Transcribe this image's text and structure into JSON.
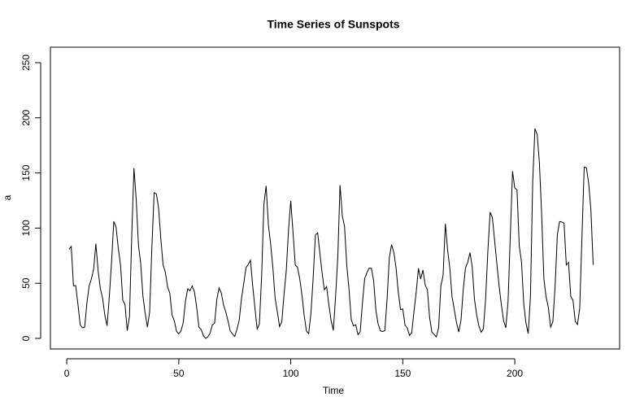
{
  "chart_data": {
    "type": "line",
    "title": "Time Series of Sunspots",
    "x_label": "Time",
    "y_label": "a",
    "x": [
      1,
      2,
      3,
      4,
      5,
      6,
      7,
      8,
      9,
      10,
      11,
      12,
      13,
      14,
      15,
      16,
      17,
      18,
      19,
      20,
      21,
      22,
      23,
      24,
      25,
      26,
      27,
      28,
      29,
      30,
      31,
      32,
      33,
      34,
      35,
      36,
      37,
      38,
      39,
      40,
      41,
      42,
      43,
      44,
      45,
      46,
      47,
      48,
      49,
      50,
      51,
      52,
      53,
      54,
      55,
      56,
      57,
      58,
      59,
      60,
      61,
      62,
      63,
      64,
      65,
      66,
      67,
      68,
      69,
      70,
      71,
      72,
      73,
      74,
      75,
      76,
      77,
      78,
      79,
      80,
      81,
      82,
      83,
      84,
      85,
      86,
      87,
      88,
      89,
      90,
      91,
      92,
      93,
      94,
      95,
      96,
      97,
      98,
      99,
      100,
      101,
      102,
      103,
      104,
      105,
      106,
      107,
      108,
      109,
      110,
      111,
      112,
      113,
      114,
      115,
      116,
      117,
      118,
      119,
      120,
      121,
      122,
      123,
      124,
      125,
      126,
      127,
      128,
      129,
      130,
      131,
      132,
      133,
      134,
      135,
      136,
      137,
      138,
      139,
      140,
      141,
      142,
      143,
      144,
      145,
      146,
      147,
      148,
      149,
      150,
      151,
      152,
      153,
      154,
      155,
      156,
      157,
      158,
      159,
      160,
      161,
      162,
      163,
      164,
      165,
      166,
      167,
      168,
      169,
      170,
      171,
      172,
      173,
      174,
      175,
      176,
      177,
      178,
      179,
      180,
      181,
      182,
      183,
      184,
      185,
      186,
      187,
      188,
      189,
      190,
      191,
      192,
      193,
      194,
      195,
      196,
      197,
      198,
      199,
      200,
      201,
      202,
      203,
      204,
      205,
      206,
      207,
      208,
      209,
      210,
      211,
      212,
      213,
      214,
      215,
      216,
      217,
      218,
      219,
      220,
      221,
      222,
      223,
      224,
      225,
      226,
      227,
      228,
      229,
      230,
      231,
      232,
      233,
      234,
      235
    ],
    "series": [
      {
        "color": "#000000",
        "values": [
          80.9,
          83.4,
          47.7,
          47.8,
          30.7,
          12.2,
          9.6,
          10.2,
          32.4,
          47.6,
          54.0,
          62.9,
          85.9,
          61.2,
          45.1,
          36.4,
          20.9,
          11.4,
          37.8,
          69.8,
          106.1,
          100.8,
          81.6,
          66.5,
          34.8,
          30.6,
          7.0,
          19.8,
          92.5,
          154.4,
          125.9,
          84.8,
          68.1,
          38.5,
          22.8,
          10.2,
          24.1,
          82.9,
          132.0,
          130.9,
          118.1,
          89.9,
          66.6,
          60.0,
          46.9,
          41.0,
          21.3,
          16.0,
          6.4,
          4.1,
          6.8,
          14.5,
          34.0,
          45.0,
          43.1,
          47.5,
          42.2,
          28.1,
          10.1,
          8.1,
          2.5,
          0.0,
          1.4,
          5.0,
          12.2,
          13.9,
          35.4,
          45.8,
          41.1,
          30.1,
          23.9,
          15.6,
          6.6,
          4.0,
          1.8,
          8.5,
          16.6,
          36.3,
          49.6,
          64.2,
          67.0,
          70.9,
          47.8,
          27.5,
          8.5,
          13.2,
          56.9,
          121.5,
          138.3,
          103.2,
          85.7,
          64.6,
          36.7,
          24.2,
          10.7,
          15.0,
          40.1,
          61.5,
          98.5,
          124.7,
          96.3,
          66.6,
          64.5,
          54.1,
          39.0,
          20.6,
          6.7,
          4.3,
          22.7,
          54.8,
          93.8,
          95.8,
          77.2,
          59.1,
          44.0,
          47.0,
          30.5,
          16.3,
          7.3,
          37.6,
          74.0,
          139.0,
          111.2,
          101.6,
          66.2,
          44.7,
          17.0,
          11.3,
          12.4,
          3.4,
          6.0,
          32.3,
          54.3,
          59.7,
          63.7,
          63.5,
          52.2,
          25.4,
          13.1,
          6.8,
          6.3,
          7.1,
          35.6,
          73.0,
          85.1,
          78.0,
          64.0,
          41.8,
          26.2,
          26.7,
          12.1,
          9.5,
          2.7,
          5.0,
          24.4,
          42.0,
          63.5,
          53.8,
          62.0,
          48.5,
          43.9,
          18.6,
          5.7,
          3.6,
          1.4,
          9.6,
          47.4,
          57.1,
          103.9,
          80.6,
          63.6,
          37.6,
          26.1,
          14.2,
          5.8,
          16.7,
          44.3,
          63.9,
          69.0,
          77.8,
          64.9,
          35.7,
          21.2,
          11.1,
          5.7,
          8.7,
          36.1,
          79.7,
          114.4,
          109.6,
          88.8,
          67.8,
          47.5,
          30.6,
          16.3,
          9.6,
          33.2,
          92.6,
          151.6,
          136.3,
          134.7,
          83.9,
          69.4,
          31.5,
          13.9,
          4.4,
          38.0,
          141.7,
          190.2,
          184.8,
          159.0,
          112.3,
          53.9,
          37.5,
          27.9,
          10.2,
          15.1,
          47.0,
          93.8,
          105.9,
          105.5,
          104.5,
          66.6,
          68.9,
          38.0,
          34.5,
          15.5,
          12.6,
          27.5,
          92.5,
          155.4,
          154.6,
          140.5,
          115.9,
          66.6
        ]
      }
    ],
    "xlim": [
      -7.3,
      246.8
    ],
    "ylim": [
      -9.6,
      264
    ],
    "xticks": [
      0,
      50,
      100,
      150,
      200
    ],
    "yticks": [
      0,
      50,
      100,
      150,
      200,
      250
    ],
    "grid": false
  }
}
